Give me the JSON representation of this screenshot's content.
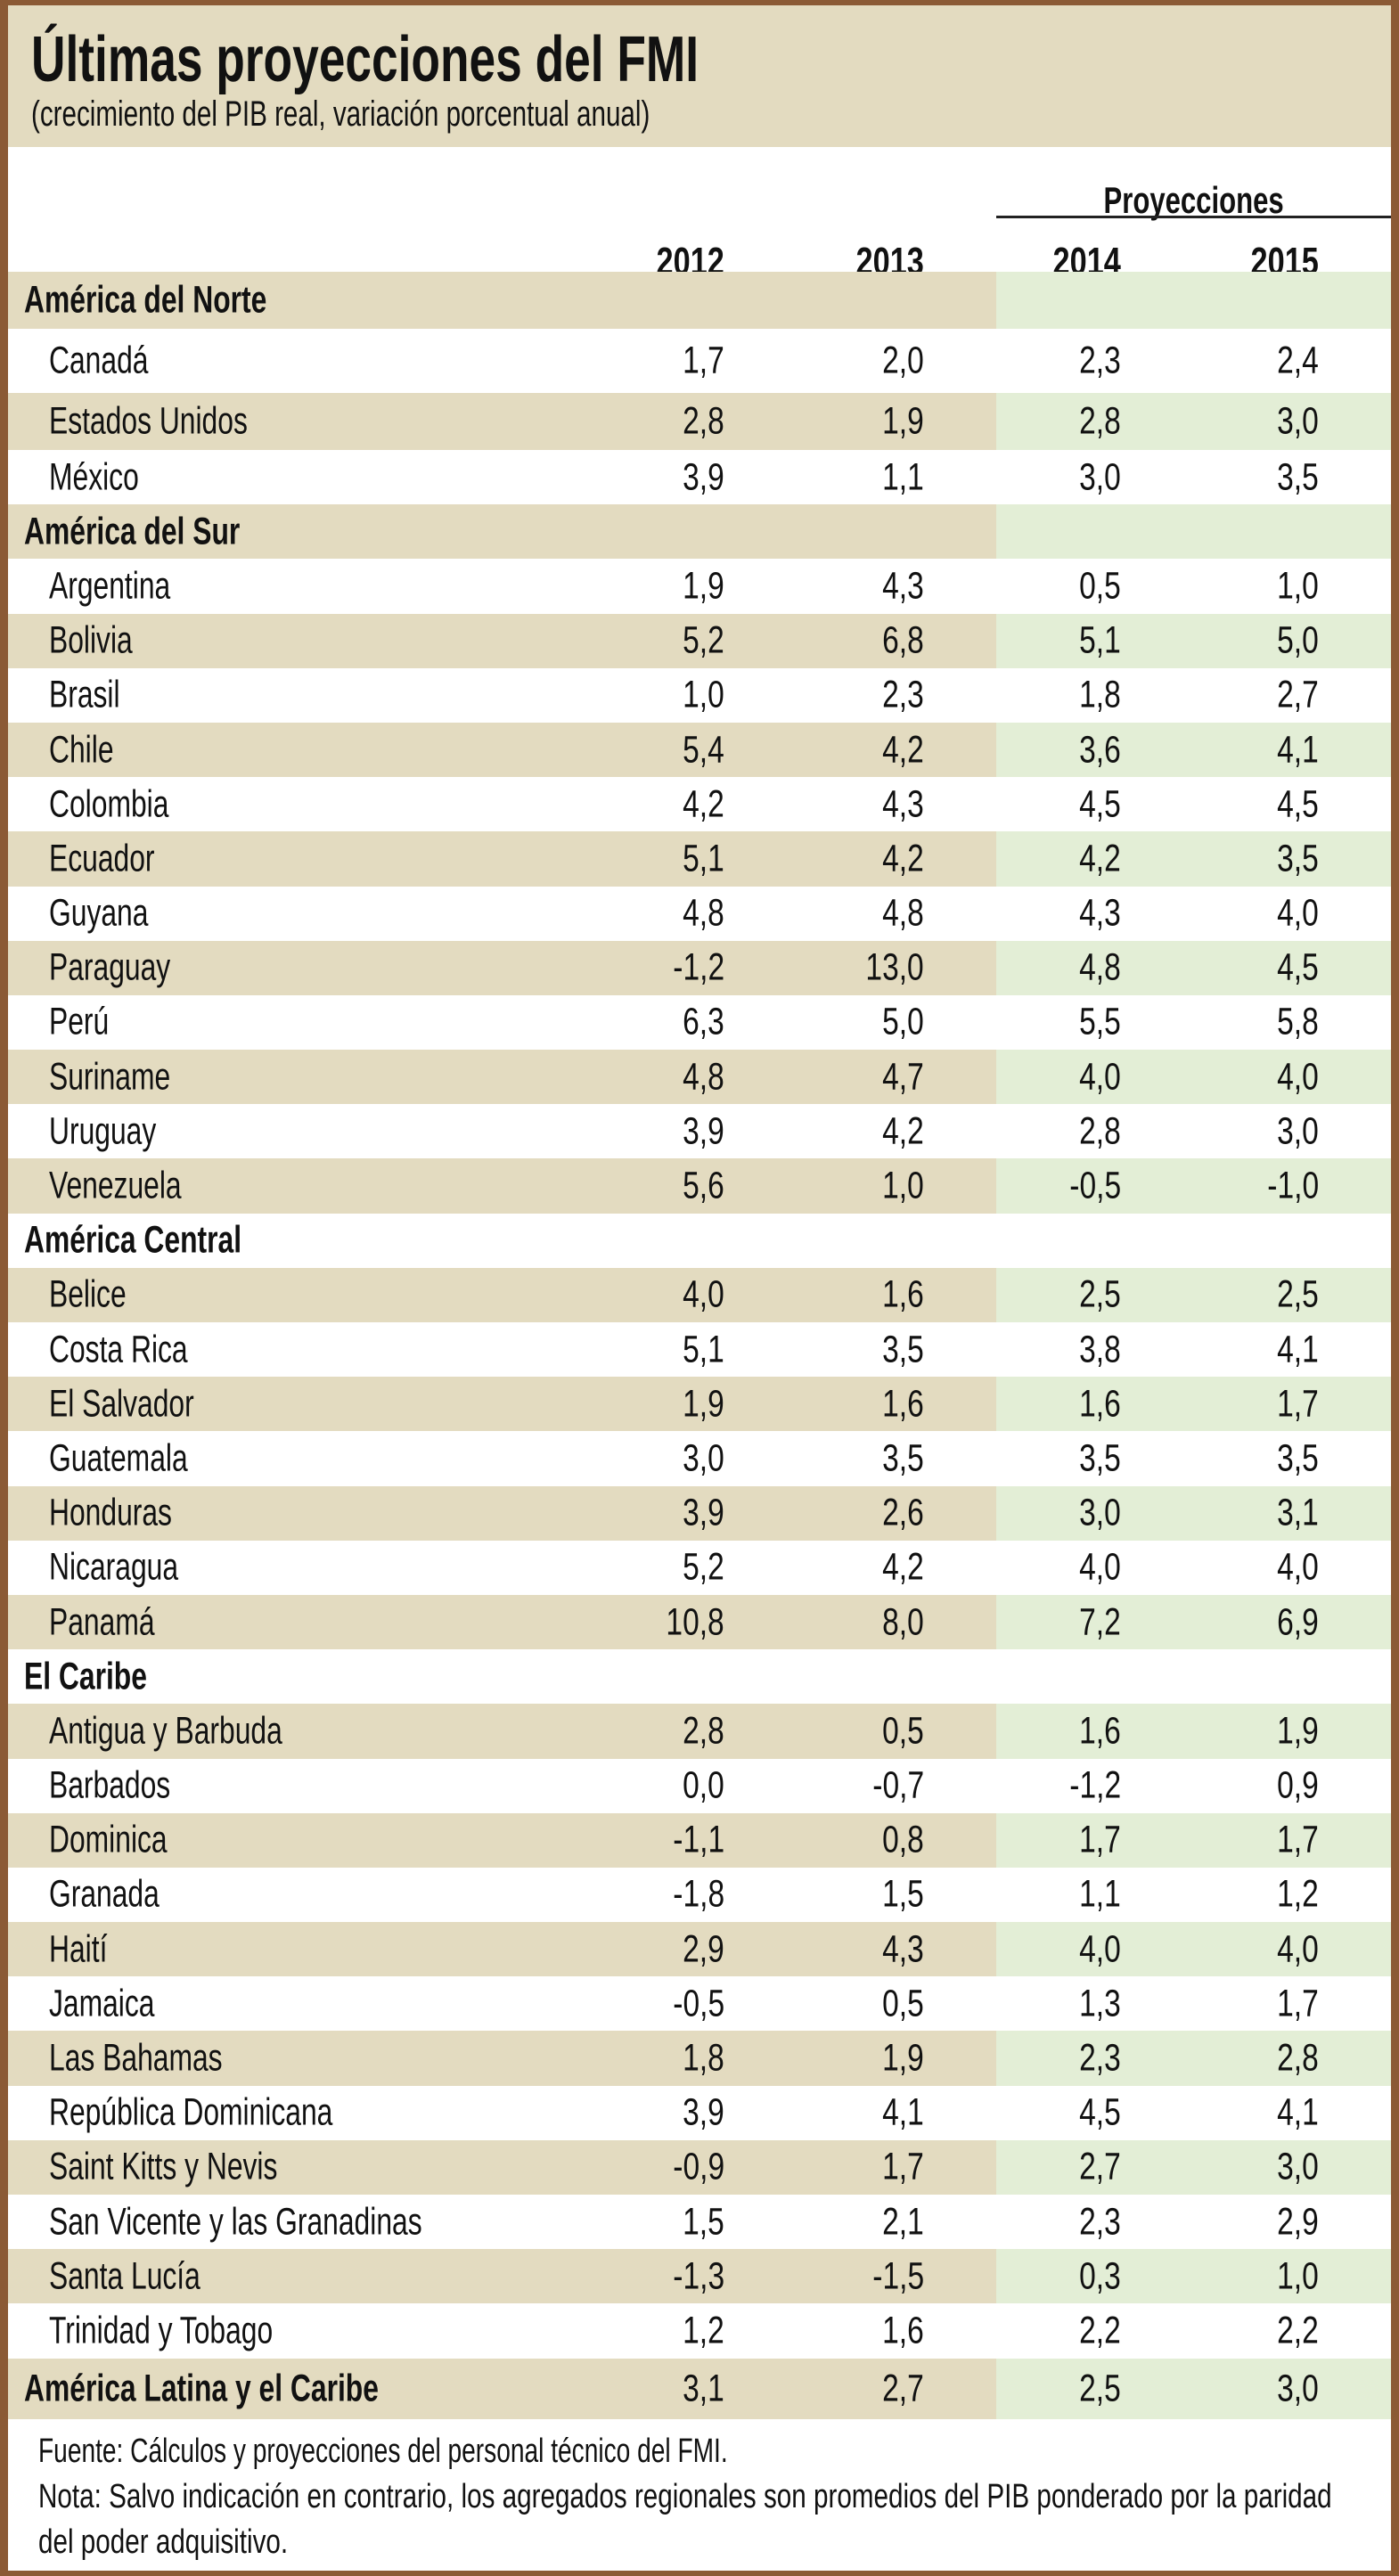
{
  "title": "Últimas proyecciones del FMI",
  "subtitle": "(crecimiento del PIB real, variación porcentual anual)",
  "projections_label": "Proyecciones",
  "years": [
    "2012",
    "2013",
    "2014",
    "2015"
  ],
  "sections": [
    {
      "name": "América del Norte",
      "rows": [
        [
          "Canadá",
          "1,7",
          "2,0",
          "2,3",
          "2,4"
        ],
        [
          "Estados Unidos",
          "2,8",
          "1,9",
          "2,8",
          "3,0"
        ],
        [
          "México",
          "3,9",
          "1,1",
          "3,0",
          "3,5"
        ]
      ]
    },
    {
      "name": "América del Sur",
      "rows": [
        [
          "Argentina",
          "1,9",
          "4,3",
          "0,5",
          "1,0"
        ],
        [
          "Bolivia",
          "5,2",
          "6,8",
          "5,1",
          "5,0"
        ],
        [
          "Brasil",
          "1,0",
          "2,3",
          "1,8",
          "2,7"
        ],
        [
          "Chile",
          "5,4",
          "4,2",
          "3,6",
          "4,1"
        ],
        [
          "Colombia",
          "4,2",
          "4,3",
          "4,5",
          "4,5"
        ],
        [
          "Ecuador",
          "5,1",
          "4,2",
          "4,2",
          "3,5"
        ],
        [
          "Guyana",
          "4,8",
          "4,8",
          "4,3",
          "4,0"
        ],
        [
          "Paraguay",
          "-1,2",
          "13,0",
          "4,8",
          "4,5"
        ],
        [
          "Perú",
          "6,3",
          "5,0",
          "5,5",
          "5,8"
        ],
        [
          "Suriname",
          "4,8",
          "4,7",
          "4,0",
          "4,0"
        ],
        [
          "Uruguay",
          "3,9",
          "4,2",
          "2,8",
          "3,0"
        ],
        [
          "Venezuela",
          "5,6",
          "1,0",
          "-0,5",
          "-1,0"
        ]
      ]
    },
    {
      "name": "América Central",
      "rows": [
        [
          "Belice",
          "4,0",
          "1,6",
          "2,5",
          "2,5"
        ],
        [
          "Costa Rica",
          "5,1",
          "3,5",
          "3,8",
          "4,1"
        ],
        [
          "El Salvador",
          "1,9",
          "1,6",
          "1,6",
          "1,7"
        ],
        [
          "Guatemala",
          "3,0",
          "3,5",
          "3,5",
          "3,5"
        ],
        [
          "Honduras",
          "3,9",
          "2,6",
          "3,0",
          "3,1"
        ],
        [
          "Nicaragua",
          "5,2",
          "4,2",
          "4,0",
          "4,0"
        ],
        [
          "Panamá",
          "10,8",
          "8,0",
          "7,2",
          "6,9"
        ]
      ]
    },
    {
      "name": "El Caribe",
      "rows": [
        [
          "Antigua y Barbuda",
          "2,8",
          "0,5",
          "1,6",
          "1,9"
        ],
        [
          "Barbados",
          "0,0",
          "-0,7",
          "-1,2",
          "0,9"
        ],
        [
          "Dominica",
          "-1,1",
          "0,8",
          "1,7",
          "1,7"
        ],
        [
          "Granada",
          "-1,8",
          "1,5",
          "1,1",
          "1,2"
        ],
        [
          "Haití",
          "2,9",
          "4,3",
          "4,0",
          "4,0"
        ],
        [
          "Jamaica",
          "-0,5",
          "0,5",
          "1,3",
          "1,7"
        ],
        [
          "Las Bahamas",
          "1,8",
          "1,9",
          "2,3",
          "2,8"
        ],
        [
          "República Dominicana",
          "3,9",
          "4,1",
          "4,5",
          "4,1"
        ],
        [
          "Saint Kitts y Nevis",
          "-0,9",
          "1,7",
          "2,7",
          "3,0"
        ],
        [
          "San Vicente y las Granadinas",
          "1,5",
          "2,1",
          "2,3",
          "2,9"
        ],
        [
          "Santa Lucía",
          "-1,3",
          "-1,5",
          "0,3",
          "1,0"
        ],
        [
          "Trinidad y Tobago",
          "1,2",
          "1,6",
          "2,2",
          "2,2"
        ]
      ]
    }
  ],
  "total": [
    "América Latina y el Caribe",
    "3,1",
    "2,7",
    "2,5",
    "3,0"
  ],
  "notes": [
    "Fuente: Cálculos y proyecciones del personal técnico del FMI.",
    "Nota: Salvo indicación en contrario, los agregados regionales son promedios del PIB ponderado por la paridad del poder adquisitivo."
  ],
  "colors": {
    "border": "#8b5a35",
    "tan": "#e3dbc0",
    "green": "#e3eed6"
  }
}
